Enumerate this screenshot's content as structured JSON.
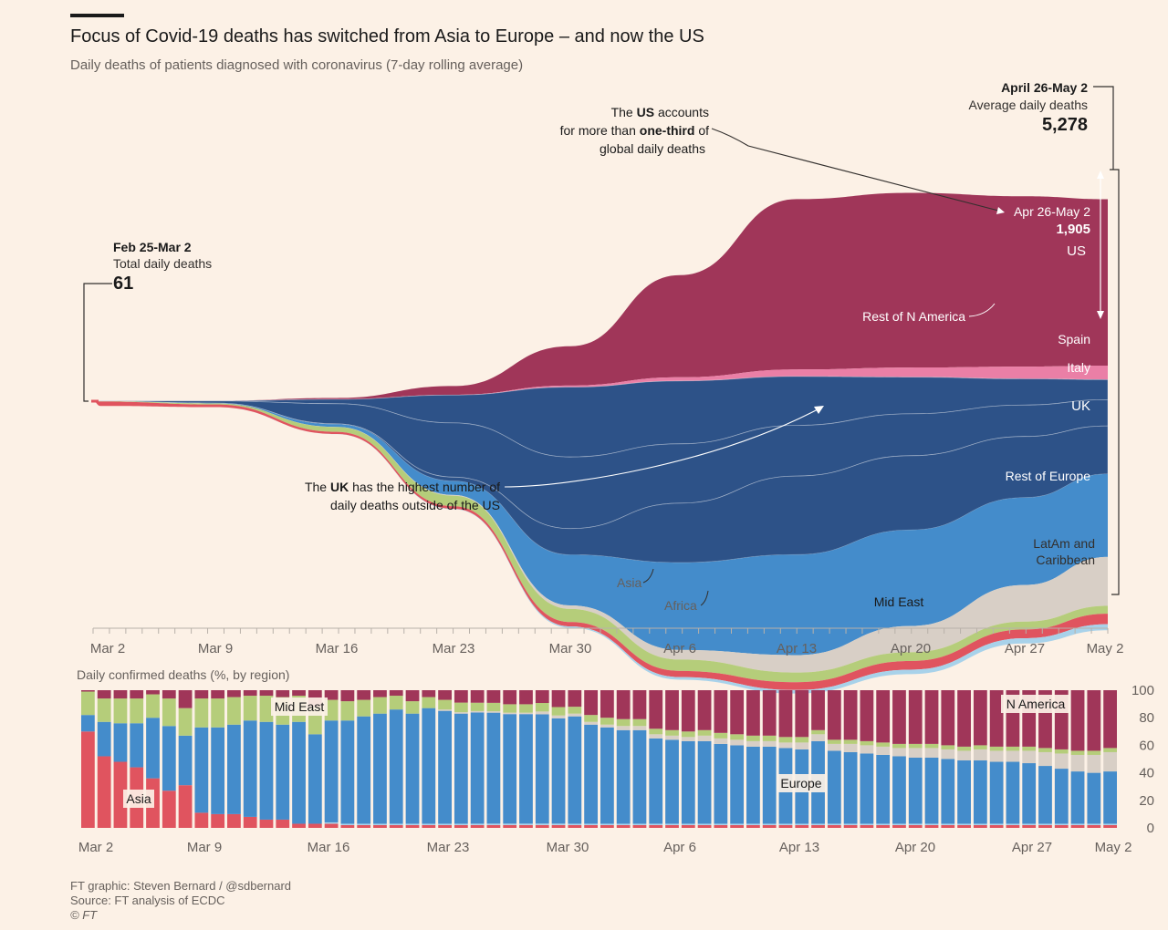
{
  "title": "Focus of Covid-19 deaths has switched from Asia to Europe – and now the US",
  "subtitle": "Daily deaths of patients diagnosed with coronavirus (7-day rolling average)",
  "colors": {
    "us": "#a03659",
    "rest_n_america": "#ea7fa6",
    "europe_named": "#2d5288",
    "rest_europe": "#448ccb",
    "latam": "#d8cfc6",
    "mid_east": "#b5cd7a",
    "asia": "#e0545f",
    "africa": "#a8d2ea",
    "background": "#fcf1e6"
  },
  "annotations": {
    "left_range": "Feb 25-Mar 2",
    "left_caption": "Total daily deaths",
    "left_value": "61",
    "right_range": "April 26-May 2",
    "right_caption": "Average daily deaths",
    "right_value": "5,278",
    "us_note_1": "The",
    "us_note_us": "US",
    "us_note_2": "accounts",
    "us_note_3": "for more than",
    "us_note_third": "one-third",
    "us_note_4": "of",
    "us_note_5": "global daily deaths",
    "us_range": "Apr 26-May 2",
    "us_value": "1,905",
    "uk_note_1": "The",
    "uk_note_uk": "UK",
    "uk_note_2": "has the highest number of",
    "uk_note_3": "daily deaths outside of the US"
  },
  "area_labels": {
    "us": "US",
    "rest_n_america": "Rest of N America",
    "spain": "Spain",
    "italy": "Italy",
    "uk": "UK",
    "rest_europe": "Rest of Europe",
    "latam_1": "LatAm and",
    "latam_2": "Caribbean",
    "mid_east": "Mid East",
    "asia": "Asia",
    "africa": "Africa"
  },
  "bar_chart": {
    "label": "Daily confirmed deaths (%, by region)",
    "y_ticks": [
      "100",
      "80",
      "60",
      "40",
      "20",
      "0"
    ],
    "inline_labels": {
      "mid_east": "Mid East",
      "asia": "Asia",
      "europe": "Europe",
      "n_america": "N America"
    }
  },
  "x_ticks": [
    "Mar 2",
    "Mar 9",
    "Mar 16",
    "Mar 23",
    "Mar 30",
    "Apr 6",
    "Apr 13",
    "Apr 20",
    "Apr 27",
    "May 2"
  ],
  "footer": {
    "credit": "FT graphic: Steven Bernard / @sdbernard",
    "source": "Source: FT analysis of ECDC",
    "copyright": "© FT"
  },
  "chart_data": [
    {
      "type": "area",
      "layout": "streamgraph",
      "title": "Focus of Covid-19 deaths has switched from Asia to Europe – and now the US",
      "subtitle": "Daily deaths of patients diagnosed with coronavirus (7-day rolling average)",
      "x": [
        "Mar 2",
        "Mar 9",
        "Mar 16",
        "Mar 23",
        "Mar 30",
        "Apr 6",
        "Apr 13",
        "Apr 20",
        "Apr 27",
        "May 2"
      ],
      "series": [
        {
          "name": "US",
          "values": [
            0,
            1,
            15,
            100,
            450,
            1170,
            1950,
            2000,
            1950,
            1905
          ]
        },
        {
          "name": "Rest of N America",
          "values": [
            0,
            0,
            1,
            3,
            18,
            42,
            80,
            110,
            140,
            160
          ]
        },
        {
          "name": "Spain",
          "values": [
            0,
            1,
            50,
            320,
            800,
            720,
            560,
            420,
            300,
            230
          ]
        },
        {
          "name": "Italy",
          "values": [
            4,
            25,
            230,
            620,
            820,
            680,
            580,
            480,
            360,
            300
          ]
        },
        {
          "name": "UK",
          "values": [
            0,
            1,
            5,
            45,
            300,
            680,
            900,
            850,
            700,
            550
          ]
        },
        {
          "name": "Rest of Europe",
          "values": [
            0,
            3,
            30,
            160,
            580,
            1000,
            1150,
            1100,
            1000,
            950
          ]
        },
        {
          "name": "LatAm and Caribbean",
          "values": [
            0,
            0,
            2,
            8,
            40,
            110,
            200,
            300,
            420,
            560
          ]
        },
        {
          "name": "Mid East",
          "values": [
            3,
            12,
            55,
            120,
            150,
            130,
            110,
            100,
            90,
            90
          ]
        },
        {
          "name": "Asia",
          "values": [
            50,
            30,
            25,
            30,
            50,
            70,
            90,
            100,
            100,
            120
          ]
        },
        {
          "name": "Africa",
          "values": [
            0,
            0,
            1,
            5,
            15,
            30,
            40,
            50,
            60,
            70
          ]
        }
      ],
      "annotations": [
        {
          "range": "Feb 25-Mar 2",
          "label": "Total daily deaths",
          "value": 61
        },
        {
          "range": "April 26-May 2",
          "label": "Average daily deaths",
          "value": 5278
        },
        {
          "range": "Apr 26-May 2",
          "label": "US",
          "value": 1905
        }
      ]
    },
    {
      "type": "bar",
      "stacked": true,
      "title": "Daily confirmed deaths (%, by region)",
      "x_start": "Mar 1",
      "x_end": "May 3",
      "x_ticks": [
        "Mar 2",
        "Mar 9",
        "Mar 16",
        "Mar 23",
        "Mar 30",
        "Apr 6",
        "Apr 13",
        "Apr 20",
        "Apr 27",
        "May 2"
      ],
      "ylim": [
        0,
        100
      ],
      "order": [
        "Asia",
        "Africa",
        "Europe",
        "LatAm",
        "Mid East",
        "N America"
      ],
      "series": [
        {
          "name": "Asia",
          "values": [
            70,
            52,
            48,
            44,
            36,
            27,
            31,
            11,
            10,
            10,
            8,
            6,
            6,
            3,
            3,
            3,
            2,
            2,
            2,
            2,
            2,
            2,
            2,
            2,
            2,
            2,
            2,
            2,
            2,
            2,
            2,
            2,
            2,
            2,
            2,
            2,
            2,
            2,
            2,
            2,
            2,
            2,
            2,
            2,
            2,
            2,
            2,
            2,
            2,
            2,
            2,
            2,
            2,
            2,
            2,
            2,
            2,
            2,
            2,
            2,
            2,
            2,
            2,
            2
          ]
        },
        {
          "name": "Africa",
          "values": [
            0,
            0,
            0,
            0,
            0,
            0,
            0,
            0,
            0,
            0,
            0,
            0,
            0,
            0,
            0,
            1,
            1,
            1,
            1,
            1,
            1,
            1,
            1,
            1,
            1,
            1,
            1,
            1,
            1,
            1,
            1,
            1,
            1,
            1,
            1,
            1,
            1,
            1,
            1,
            1,
            1,
            1,
            1,
            1,
            1,
            1,
            1,
            1,
            1,
            1,
            1,
            1,
            1,
            1,
            1,
            1,
            1,
            1,
            1,
            1,
            1,
            1,
            1,
            1
          ]
        },
        {
          "name": "Europe",
          "values": [
            12,
            25,
            28,
            32,
            44,
            47,
            36,
            62,
            63,
            65,
            70,
            71,
            69,
            74,
            65,
            74,
            75,
            78,
            80,
            83,
            80,
            84,
            82,
            80,
            80,
            79,
            78,
            78,
            77,
            75,
            78,
            72,
            70,
            68,
            68,
            62,
            61,
            60,
            60,
            58,
            57,
            56,
            56,
            55,
            54,
            60,
            53,
            52,
            51,
            50,
            49,
            48,
            48,
            47,
            46,
            46,
            45,
            45,
            44,
            42,
            40,
            38,
            37,
            38
          ]
        },
        {
          "name": "LatAm",
          "values": [
            0,
            0,
            0,
            0,
            0,
            0,
            0,
            0,
            0,
            0,
            0,
            0,
            0,
            0,
            0,
            0,
            0,
            0,
            0,
            0,
            0,
            0,
            1,
            1,
            1,
            1,
            1,
            1,
            2,
            2,
            2,
            2,
            2,
            3,
            3,
            3,
            3,
            3,
            4,
            4,
            4,
            4,
            4,
            4,
            5,
            5,
            5,
            6,
            6,
            6,
            6,
            7,
            7,
            7,
            7,
            8,
            8,
            8,
            9,
            10,
            11,
            12,
            13,
            14
          ]
        },
        {
          "name": "Mid East",
          "values": [
            17,
            17,
            18,
            18,
            17,
            20,
            20,
            21,
            21,
            20,
            18,
            19,
            20,
            19,
            20,
            15,
            14,
            12,
            12,
            10,
            9,
            8,
            7,
            7,
            6,
            6,
            6,
            6,
            6,
            6,
            5,
            5,
            5,
            5,
            5,
            4,
            4,
            4,
            4,
            4,
            4,
            4,
            4,
            4,
            4,
            3,
            3,
            3,
            3,
            3,
            3,
            3,
            3,
            3,
            3,
            3,
            3,
            3,
            3,
            3,
            3,
            3,
            3,
            3
          ]
        },
        {
          "name": "N America",
          "values": [
            1,
            6,
            6,
            6,
            3,
            6,
            13,
            6,
            6,
            5,
            4,
            4,
            5,
            4,
            12,
            7,
            8,
            7,
            5,
            4,
            8,
            5,
            7,
            9,
            9,
            9,
            10,
            10,
            9,
            12,
            12,
            18,
            20,
            21,
            21,
            28,
            29,
            30,
            29,
            31,
            32,
            33,
            33,
            34,
            34,
            29,
            36,
            36,
            37,
            38,
            39,
            39,
            39,
            40,
            41,
            40,
            41,
            41,
            41,
            42,
            43,
            44,
            44,
            42
          ]
        }
      ]
    }
  ]
}
